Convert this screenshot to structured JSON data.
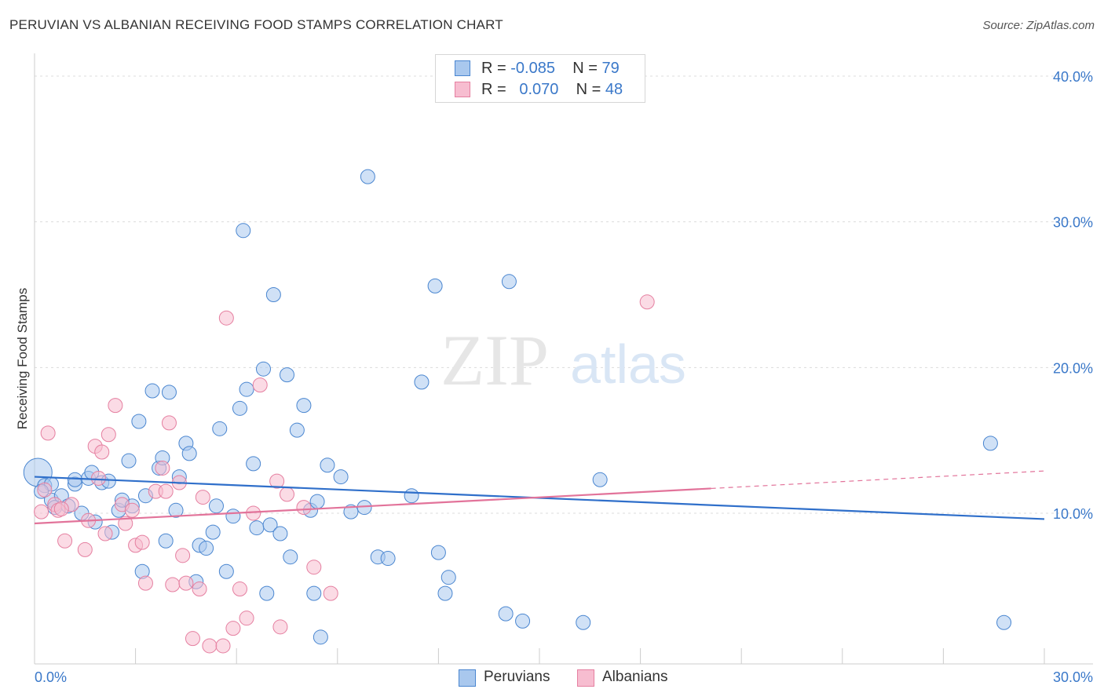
{
  "title": "PERUVIAN VS ALBANIAN RECEIVING FOOD STAMPS CORRELATION CHART",
  "source": "Source: ZipAtlas.com",
  "watermark": {
    "zip": "ZIP",
    "atlas": "atlas"
  },
  "legend": {
    "r_label": "R =",
    "n_label": "N =",
    "rows": [
      {
        "r": "-0.085",
        "n": "79"
      },
      {
        "r": "0.070",
        "n": "48"
      }
    ]
  },
  "bottom_legend": [
    "Peruvians",
    "Albanians"
  ],
  "colors": {
    "peruvian_fill": "#a9c8ee",
    "peruvian_stroke": "#4a86d0",
    "peruvian_line": "#2f6fca",
    "albanian_fill": "#f7bdd0",
    "albanian_stroke": "#e57fa0",
    "albanian_line": "#e2739a",
    "axis_text": "#3a78c9",
    "grid": "#dcdcdc"
  },
  "chart_data": {
    "type": "scatter",
    "title": "PERUVIAN VS ALBANIAN RECEIVING FOOD STAMPS CORRELATION CHART",
    "xlabel": "",
    "ylabel": "Receiving Food Stamps",
    "xlim": [
      0,
      30
    ],
    "ylim": [
      0,
      40
    ],
    "x_tick_labels": [
      "0.0%",
      "30.0%"
    ],
    "y_ticks": [
      10,
      20,
      30,
      40
    ],
    "y_tick_labels": [
      "10.0%",
      "20.0%",
      "30.0%",
      "40.0%"
    ],
    "series": [
      {
        "name": "Peruvians",
        "r": -0.085,
        "n": 79,
        "trend": {
          "x": [
            0,
            30
          ],
          "y": [
            12.5,
            9.6
          ]
        },
        "points": [
          [
            0.1,
            12.8
          ],
          [
            0.3,
            11.9
          ],
          [
            0.5,
            10.9
          ],
          [
            0.5,
            12.0
          ],
          [
            0.6,
            10.4
          ],
          [
            0.8,
            11.2
          ],
          [
            1.0,
            10.5
          ],
          [
            1.2,
            12.0
          ],
          [
            1.2,
            12.3
          ],
          [
            1.4,
            10.0
          ],
          [
            1.6,
            12.4
          ],
          [
            1.7,
            12.8
          ],
          [
            1.8,
            9.4
          ],
          [
            2.0,
            12.1
          ],
          [
            2.2,
            12.2
          ],
          [
            2.3,
            8.7
          ],
          [
            2.5,
            10.2
          ],
          [
            2.6,
            10.9
          ],
          [
            2.8,
            13.6
          ],
          [
            2.9,
            10.5
          ],
          [
            3.1,
            16.3
          ],
          [
            3.2,
            6.0
          ],
          [
            3.3,
            11.2
          ],
          [
            3.5,
            18.4
          ],
          [
            3.7,
            13.1
          ],
          [
            3.8,
            13.8
          ],
          [
            3.9,
            8.1
          ],
          [
            4.0,
            18.3
          ],
          [
            4.2,
            10.2
          ],
          [
            4.3,
            12.5
          ],
          [
            4.5,
            14.8
          ],
          [
            4.6,
            14.1
          ],
          [
            4.8,
            5.3
          ],
          [
            4.9,
            7.8
          ],
          [
            5.1,
            7.6
          ],
          [
            5.3,
            8.7
          ],
          [
            5.4,
            10.5
          ],
          [
            5.5,
            15.8
          ],
          [
            5.7,
            6.0
          ],
          [
            5.9,
            9.8
          ],
          [
            6.1,
            17.2
          ],
          [
            6.2,
            29.4
          ],
          [
            6.3,
            18.5
          ],
          [
            6.5,
            13.4
          ],
          [
            6.6,
            9.0
          ],
          [
            6.8,
            19.9
          ],
          [
            6.9,
            4.5
          ],
          [
            7.0,
            9.2
          ],
          [
            7.1,
            25.0
          ],
          [
            7.3,
            8.6
          ],
          [
            7.5,
            19.5
          ],
          [
            7.6,
            7.0
          ],
          [
            7.8,
            15.7
          ],
          [
            8.0,
            17.4
          ],
          [
            8.2,
            10.2
          ],
          [
            8.3,
            4.5
          ],
          [
            8.4,
            10.8
          ],
          [
            8.5,
            1.5
          ],
          [
            8.7,
            13.3
          ],
          [
            9.1,
            12.5
          ],
          [
            9.4,
            10.1
          ],
          [
            9.8,
            10.4
          ],
          [
            9.9,
            33.1
          ],
          [
            10.2,
            7.0
          ],
          [
            10.5,
            6.9
          ],
          [
            11.2,
            11.2
          ],
          [
            11.5,
            19.0
          ],
          [
            11.9,
            25.6
          ],
          [
            12.0,
            7.3
          ],
          [
            12.2,
            4.5
          ],
          [
            12.3,
            5.6
          ],
          [
            14.0,
            3.1
          ],
          [
            14.1,
            25.9
          ],
          [
            14.5,
            2.6
          ],
          [
            16.3,
            2.5
          ],
          [
            16.8,
            12.3
          ],
          [
            28.4,
            14.8
          ],
          [
            28.8,
            2.5
          ],
          [
            0.2,
            11.5
          ]
        ]
      },
      {
        "name": "Albanians",
        "r": 0.07,
        "n": 48,
        "trend": {
          "x": [
            0,
            20.1
          ],
          "y": [
            9.3,
            11.7
          ]
        },
        "trend_dashed": {
          "x": [
            20.1,
            30
          ],
          "y": [
            11.7,
            12.9
          ]
        },
        "points": [
          [
            0.2,
            10.1
          ],
          [
            0.3,
            11.6
          ],
          [
            0.4,
            15.5
          ],
          [
            0.6,
            10.6
          ],
          [
            0.7,
            10.2
          ],
          [
            0.9,
            8.1
          ],
          [
            1.1,
            10.6
          ],
          [
            1.5,
            7.5
          ],
          [
            1.6,
            9.5
          ],
          [
            1.8,
            14.6
          ],
          [
            1.9,
            12.4
          ],
          [
            2.0,
            14.2
          ],
          [
            2.1,
            8.6
          ],
          [
            2.2,
            15.4
          ],
          [
            2.4,
            17.4
          ],
          [
            2.6,
            10.6
          ],
          [
            2.7,
            9.3
          ],
          [
            2.9,
            10.2
          ],
          [
            3.0,
            7.8
          ],
          [
            3.2,
            8.0
          ],
          [
            3.3,
            5.2
          ],
          [
            3.6,
            11.5
          ],
          [
            3.8,
            13.1
          ],
          [
            3.9,
            11.5
          ],
          [
            4.0,
            16.2
          ],
          [
            4.1,
            5.1
          ],
          [
            4.3,
            12.1
          ],
          [
            4.4,
            7.1
          ],
          [
            4.5,
            5.2
          ],
          [
            4.7,
            1.4
          ],
          [
            4.9,
            4.8
          ],
          [
            5.0,
            11.1
          ],
          [
            5.2,
            0.9
          ],
          [
            5.6,
            0.9
          ],
          [
            5.7,
            23.4
          ],
          [
            5.9,
            2.1
          ],
          [
            6.1,
            4.8
          ],
          [
            6.3,
            2.8
          ],
          [
            6.5,
            10.0
          ],
          [
            6.7,
            18.8
          ],
          [
            7.2,
            12.2
          ],
          [
            7.3,
            2.2
          ],
          [
            7.5,
            11.3
          ],
          [
            8.0,
            10.4
          ],
          [
            8.3,
            6.3
          ],
          [
            8.8,
            4.5
          ],
          [
            18.2,
            24.5
          ],
          [
            0.8,
            10.3
          ]
        ]
      }
    ]
  }
}
